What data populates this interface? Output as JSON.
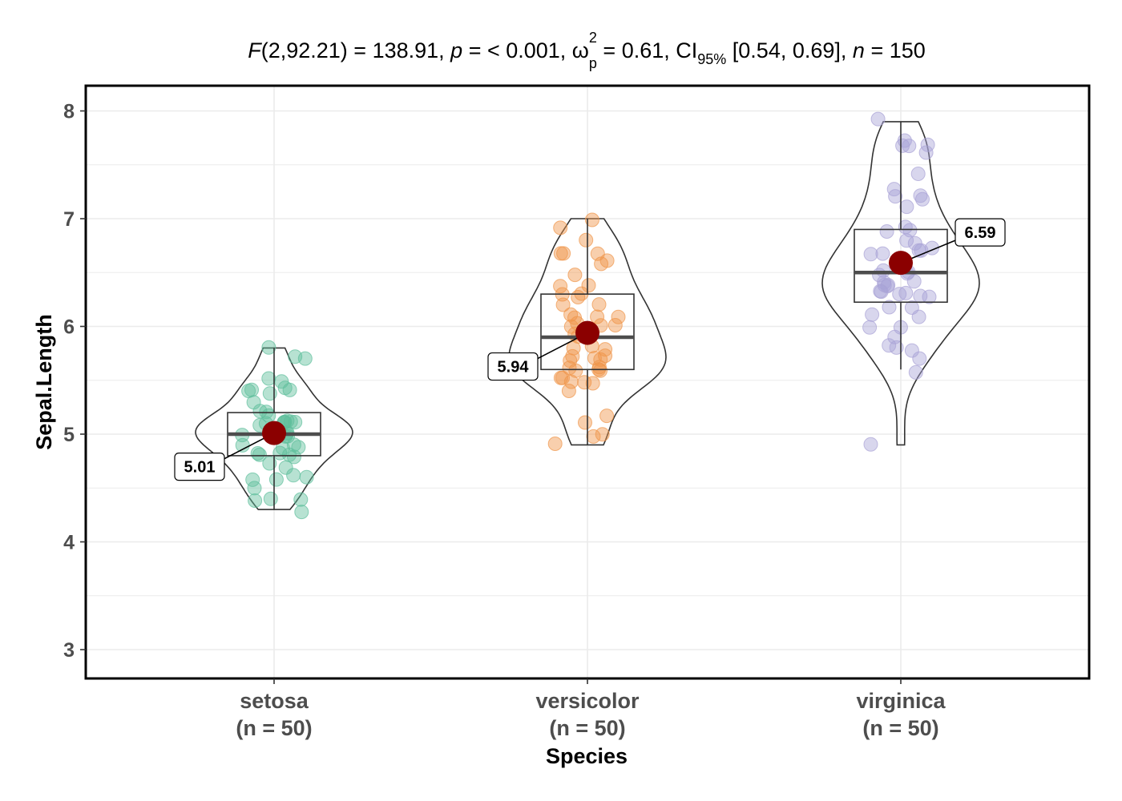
{
  "chart_data": {
    "type": "violin-box-scatter",
    "title": {
      "f_symbol": "F",
      "f_args": "(2,92.21) = 138.91, ",
      "p_symbol": "p",
      "p_text": " = < 0.001, ",
      "omega": "ω",
      "omega_sup": "2",
      "omega_sub": "p",
      "omega_text": " = 0.61, CI",
      "ci_sub": "95%",
      "ci_text": " [0.54, 0.69], ",
      "n_symbol": "n",
      "n_text": " = 150"
    },
    "xlabel": "Species",
    "ylabel": "Sepal.Length",
    "ylim": [
      2.75,
      8.25
    ],
    "yticks": [
      3,
      4,
      5,
      6,
      7,
      8
    ],
    "ytick_labels": [
      "3",
      "4",
      "5",
      "6",
      "7",
      "8"
    ],
    "grid": true,
    "colors": {
      "setosa": "#5fbf9c",
      "versicolor": "#f0954a",
      "virginica": "#a9a3d6",
      "mean_point": "#8b0000",
      "frame": "#000000",
      "grid": "#ebebeb"
    },
    "groups": [
      {
        "name": "setosa",
        "label": "setosa",
        "n_label": "(n = 50)",
        "mean": 5.01,
        "mean_label": "5.01",
        "label_side": "left",
        "box": {
          "q1": 4.8,
          "median": 5.0,
          "q3": 5.2,
          "min": 4.3,
          "max": 5.8
        },
        "violin_range": [
          4.3,
          5.8
        ],
        "values": [
          5.1,
          4.9,
          4.7,
          4.6,
          5.0,
          5.4,
          4.6,
          5.0,
          4.4,
          4.9,
          5.4,
          4.8,
          4.8,
          4.3,
          5.8,
          5.7,
          5.4,
          5.1,
          5.7,
          5.1,
          5.4,
          5.1,
          4.6,
          5.1,
          4.8,
          5.0,
          5.0,
          5.2,
          5.2,
          4.7,
          4.8,
          5.4,
          5.2,
          5.5,
          4.9,
          5.0,
          5.5,
          4.9,
          4.4,
          5.1,
          5.0,
          4.5,
          4.4,
          5.0,
          5.1,
          4.8,
          5.1,
          4.6,
          5.3,
          5.0
        ]
      },
      {
        "name": "versicolor",
        "label": "versicolor",
        "n_label": "(n = 50)",
        "mean": 5.94,
        "mean_label": "5.94",
        "label_side": "left",
        "box": {
          "q1": 5.6,
          "median": 5.9,
          "q3": 6.3,
          "min": 4.9,
          "max": 7.0
        },
        "violin_range": [
          4.9,
          7.0
        ],
        "values": [
          7.0,
          6.4,
          6.9,
          5.5,
          6.5,
          5.7,
          6.3,
          4.9,
          6.6,
          5.2,
          5.0,
          5.9,
          6.0,
          6.1,
          5.6,
          6.7,
          5.6,
          5.8,
          6.2,
          5.6,
          5.9,
          6.1,
          6.3,
          6.1,
          6.4,
          6.6,
          6.8,
          6.7,
          6.0,
          5.7,
          5.5,
          5.5,
          5.8,
          6.0,
          5.4,
          6.0,
          6.7,
          6.3,
          5.6,
          5.5,
          5.5,
          6.1,
          5.8,
          5.0,
          5.6,
          5.7,
          5.7,
          6.2,
          5.1,
          5.7
        ]
      },
      {
        "name": "virginica",
        "label": "virginica",
        "n_label": "(n = 50)",
        "mean": 6.59,
        "mean_label": "6.59",
        "label_side": "right",
        "box": {
          "q1": 6.225,
          "median": 6.5,
          "q3": 6.9,
          "min": 5.6,
          "max": 7.9
        },
        "violin_range": [
          4.9,
          7.9
        ],
        "values": [
          6.3,
          5.8,
          7.1,
          6.3,
          6.5,
          7.6,
          4.9,
          7.3,
          6.7,
          7.2,
          6.5,
          6.4,
          6.8,
          5.7,
          5.8,
          6.4,
          6.5,
          7.7,
          7.7,
          6.0,
          6.9,
          5.6,
          7.7,
          6.3,
          6.7,
          7.2,
          6.2,
          6.1,
          6.4,
          7.2,
          7.4,
          7.9,
          6.4,
          6.3,
          6.1,
          7.7,
          6.3,
          6.4,
          6.0,
          6.9,
          6.7,
          6.9,
          5.8,
          6.8,
          6.7,
          6.7,
          6.3,
          6.5,
          6.2,
          5.9
        ]
      }
    ]
  }
}
